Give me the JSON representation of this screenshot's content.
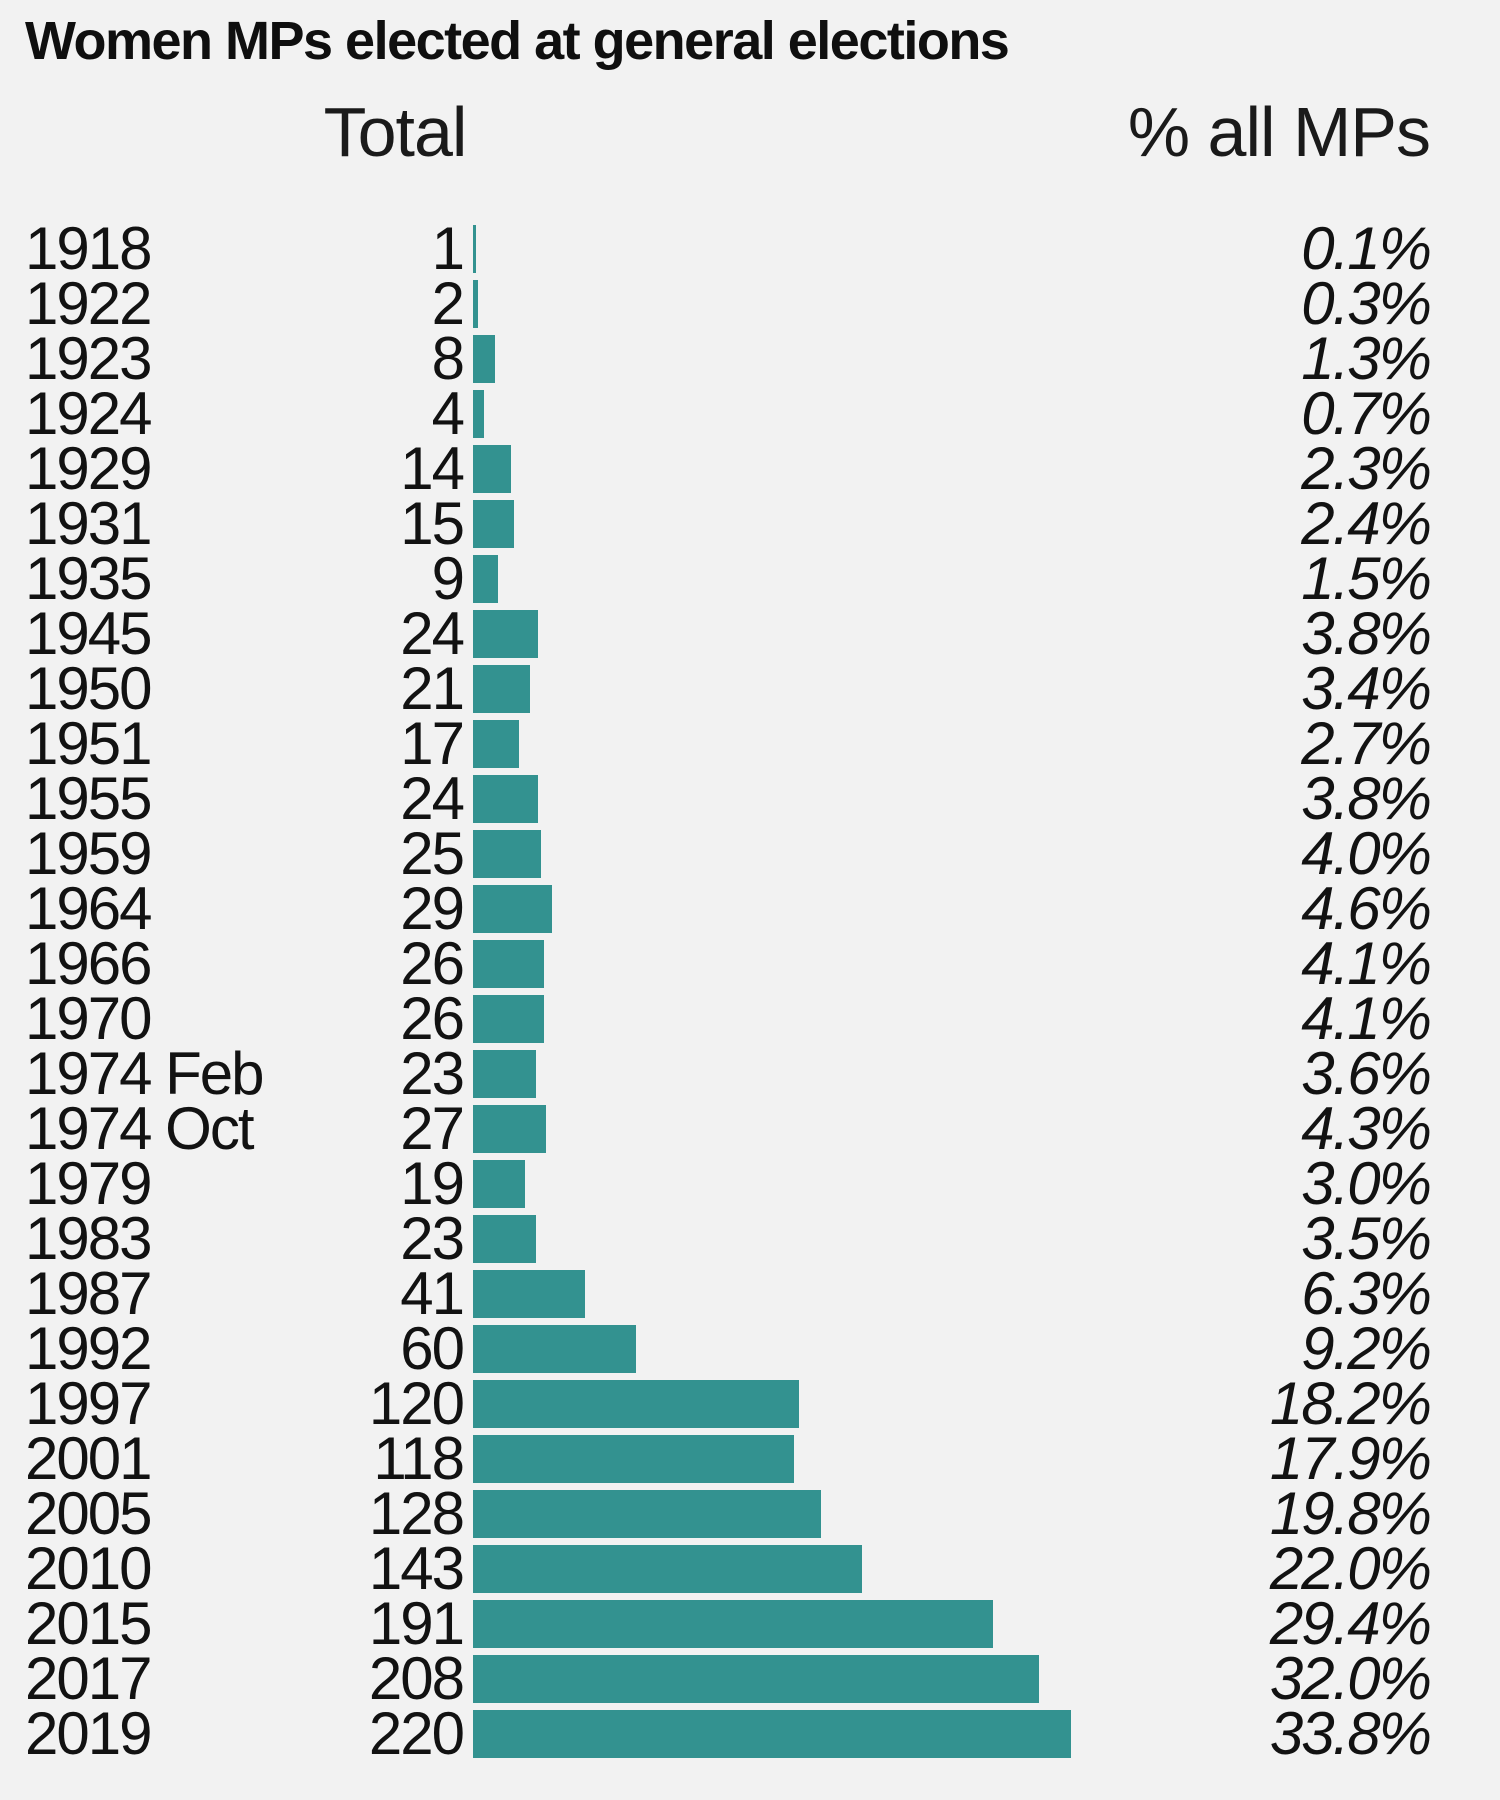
{
  "title": "Women MPs elected at general elections",
  "headers": {
    "total": "Total",
    "percent": "% all MPs"
  },
  "colors": {
    "bar": "#339290",
    "background": "#f2f2f2",
    "text": "#121212"
  },
  "rows": [
    {
      "year": "1918",
      "total": "1",
      "percent": "0.1%",
      "value": 1
    },
    {
      "year": "1922",
      "total": "2",
      "percent": "0.3%",
      "value": 2
    },
    {
      "year": "1923",
      "total": "8",
      "percent": "1.3%",
      "value": 8
    },
    {
      "year": "1924",
      "total": "4",
      "percent": "0.7%",
      "value": 4
    },
    {
      "year": "1929",
      "total": "14",
      "percent": "2.3%",
      "value": 14
    },
    {
      "year": "1931",
      "total": "15",
      "percent": "2.4%",
      "value": 15
    },
    {
      "year": "1935",
      "total": "9",
      "percent": "1.5%",
      "value": 9
    },
    {
      "year": "1945",
      "total": "24",
      "percent": "3.8%",
      "value": 24
    },
    {
      "year": "1950",
      "total": "21",
      "percent": "3.4%",
      "value": 21
    },
    {
      "year": "1951",
      "total": "17",
      "percent": "2.7%",
      "value": 17
    },
    {
      "year": "1955",
      "total": "24",
      "percent": "3.8%",
      "value": 24
    },
    {
      "year": "1959",
      "total": "25",
      "percent": "4.0%",
      "value": 25
    },
    {
      "year": "1964",
      "total": "29",
      "percent": "4.6%",
      "value": 29
    },
    {
      "year": "1966",
      "total": "26",
      "percent": "4.1%",
      "value": 26
    },
    {
      "year": "1970",
      "total": "26",
      "percent": "4.1%",
      "value": 26
    },
    {
      "year": "1974 Feb",
      "total": "23",
      "percent": "3.6%",
      "value": 23
    },
    {
      "year": "1974 Oct",
      "total": "27",
      "percent": "4.3%",
      "value": 27
    },
    {
      "year": "1979",
      "total": "19",
      "percent": "3.0%",
      "value": 19
    },
    {
      "year": "1983",
      "total": "23",
      "percent": "3.5%",
      "value": 23
    },
    {
      "year": "1987",
      "total": "41",
      "percent": "6.3%",
      "value": 41
    },
    {
      "year": "1992",
      "total": "60",
      "percent": "9.2%",
      "value": 60
    },
    {
      "year": "1997",
      "total": "120",
      "percent": "18.2%",
      "value": 120
    },
    {
      "year": "2001",
      "total": "118",
      "percent": "17.9%",
      "value": 118
    },
    {
      "year": "2005",
      "total": "128",
      "percent": "19.8%",
      "value": 128
    },
    {
      "year": "2010",
      "total": "143",
      "percent": "22.0%",
      "value": 143
    },
    {
      "year": "2015",
      "total": "191",
      "percent": "29.4%",
      "value": 191
    },
    {
      "year": "2017",
      "total": "208",
      "percent": "32.0%",
      "value": 208
    },
    {
      "year": "2019",
      "total": "220",
      "percent": "33.8%",
      "value": 220
    }
  ],
  "chart_data": {
    "type": "bar",
    "orientation": "horizontal",
    "title": "Women MPs elected at general elections",
    "categories": [
      "1918",
      "1922",
      "1923",
      "1924",
      "1929",
      "1931",
      "1935",
      "1945",
      "1950",
      "1951",
      "1955",
      "1959",
      "1964",
      "1966",
      "1970",
      "1974 Feb",
      "1974 Oct",
      "1979",
      "1983",
      "1987",
      "1992",
      "1997",
      "2001",
      "2005",
      "2010",
      "2015",
      "2017",
      "2019"
    ],
    "series": [
      {
        "name": "Total",
        "values": [
          1,
          2,
          8,
          4,
          14,
          15,
          9,
          24,
          21,
          17,
          24,
          25,
          29,
          26,
          26,
          23,
          27,
          19,
          23,
          41,
          60,
          120,
          118,
          128,
          143,
          191,
          208,
          220
        ]
      },
      {
        "name": "% all MPs",
        "values": [
          0.1,
          0.3,
          1.3,
          0.7,
          2.3,
          2.4,
          1.5,
          3.8,
          3.4,
          2.7,
          3.8,
          4.0,
          4.6,
          4.1,
          4.1,
          3.6,
          4.3,
          3.0,
          3.5,
          6.3,
          9.2,
          18.2,
          17.9,
          19.8,
          22.0,
          29.4,
          32.0,
          33.8
        ]
      }
    ],
    "x_axis": {
      "min": 0,
      "max": 220,
      "visible": false
    },
    "grid": false,
    "legend": "none",
    "value_label_columns": [
      "Total",
      "% all MPs"
    ]
  }
}
